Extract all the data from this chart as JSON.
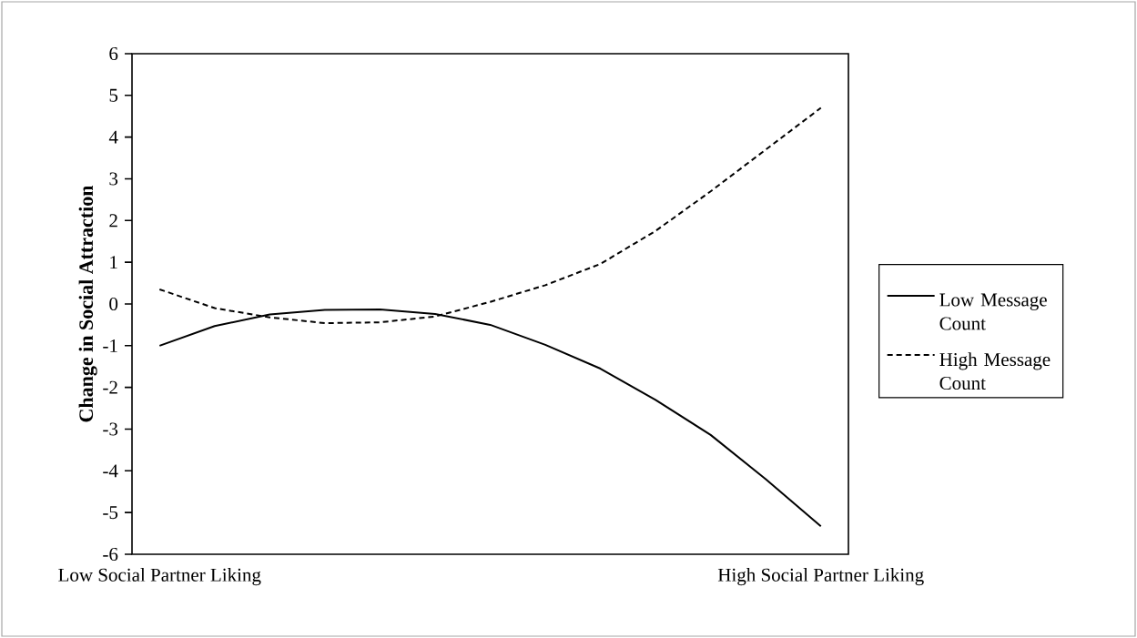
{
  "chart_data": {
    "type": "line",
    "ylabel": "Change in Social Attraction",
    "categories": [
      "Low Social Partner Liking",
      null,
      null,
      null,
      null,
      null,
      null,
      null,
      null,
      null,
      null,
      null,
      "High Social Partner Liking"
    ],
    "ylim": [
      -6,
      6
    ],
    "yticks": [
      -6,
      -5,
      -4,
      -3,
      -2,
      -1,
      0,
      1,
      2,
      3,
      4,
      5,
      6
    ],
    "legend": "right",
    "grid": false,
    "series": [
      {
        "name": "Low Message Count",
        "color": "#000000",
        "line_style": "solid",
        "values": [
          -1.0,
          -0.53,
          -0.25,
          -0.14,
          -0.13,
          -0.24,
          -0.5,
          -0.98,
          -1.55,
          -2.3,
          -3.14,
          -4.2,
          -5.33
        ]
      },
      {
        "name": "High Message Count",
        "color": "#000000",
        "line_style": "dashed",
        "values": [
          0.35,
          -0.1,
          -0.32,
          -0.46,
          -0.44,
          -0.3,
          0.05,
          0.45,
          0.96,
          1.75,
          2.7,
          3.7,
          4.7
        ]
      }
    ]
  }
}
